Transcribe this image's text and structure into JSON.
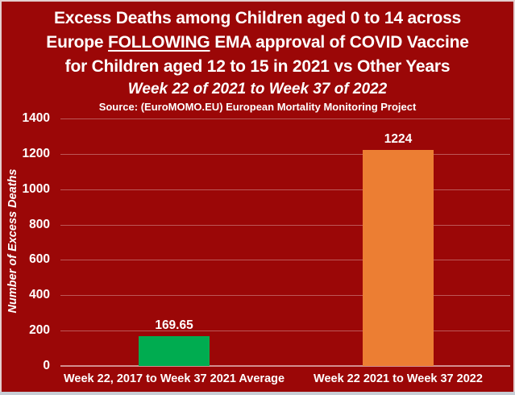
{
  "title": {
    "line1": "Excess Deaths among Children aged 0 to 14 across",
    "line2_prefix": "Europe ",
    "line2_underlined": "FOLLOWING",
    "line2_suffix": " EMA approval of COVID Vaccine",
    "line3": "for Children aged 12 to 15 in 2021 vs Other Years",
    "subtitle": "Week 22 of 2021 to Week 37 of 2022",
    "source": "Source: (EuroMOMO.EU) European Mortality Monitoring Project"
  },
  "chart_data": {
    "type": "bar",
    "title": "Excess Deaths among Children aged 0 to 14 across Europe FOLLOWING EMA approval of COVID Vaccine for Children aged 12 to 15 in 2021 vs Other Years",
    "subtitle": "Week 22 of 2021 to Week 37 of 2022",
    "source": "Source: (EuroMOMO.EU) European Mortality Monitoring Project",
    "ylabel": "Number of Excess Deaths",
    "xlabel": "",
    "ylim": [
      0,
      1400
    ],
    "yticks": [
      0,
      200,
      400,
      600,
      800,
      1000,
      1200,
      1400
    ],
    "grid": true,
    "legend": false,
    "categories": [
      "Week 22, 2017 to Week 37 2021 Average",
      "Week 22 2021 to Week 37 2022"
    ],
    "values": [
      169.65,
      1224
    ],
    "value_labels": [
      "169.65",
      "1224"
    ],
    "bar_colors": [
      "#00ac50",
      "#ec7e33"
    ],
    "bar_names": [
      "bar-average-2017-2021",
      "bar-2021-2022"
    ]
  },
  "colors": {
    "background": "#9b0707",
    "text": "#ffffff",
    "gridline": "rgba(255,255,255,0.33)",
    "bar_green": "#00ac50",
    "bar_orange": "#ec7e33",
    "border": "#e3cfcf",
    "bottom_strip": "#c7cdd5"
  }
}
